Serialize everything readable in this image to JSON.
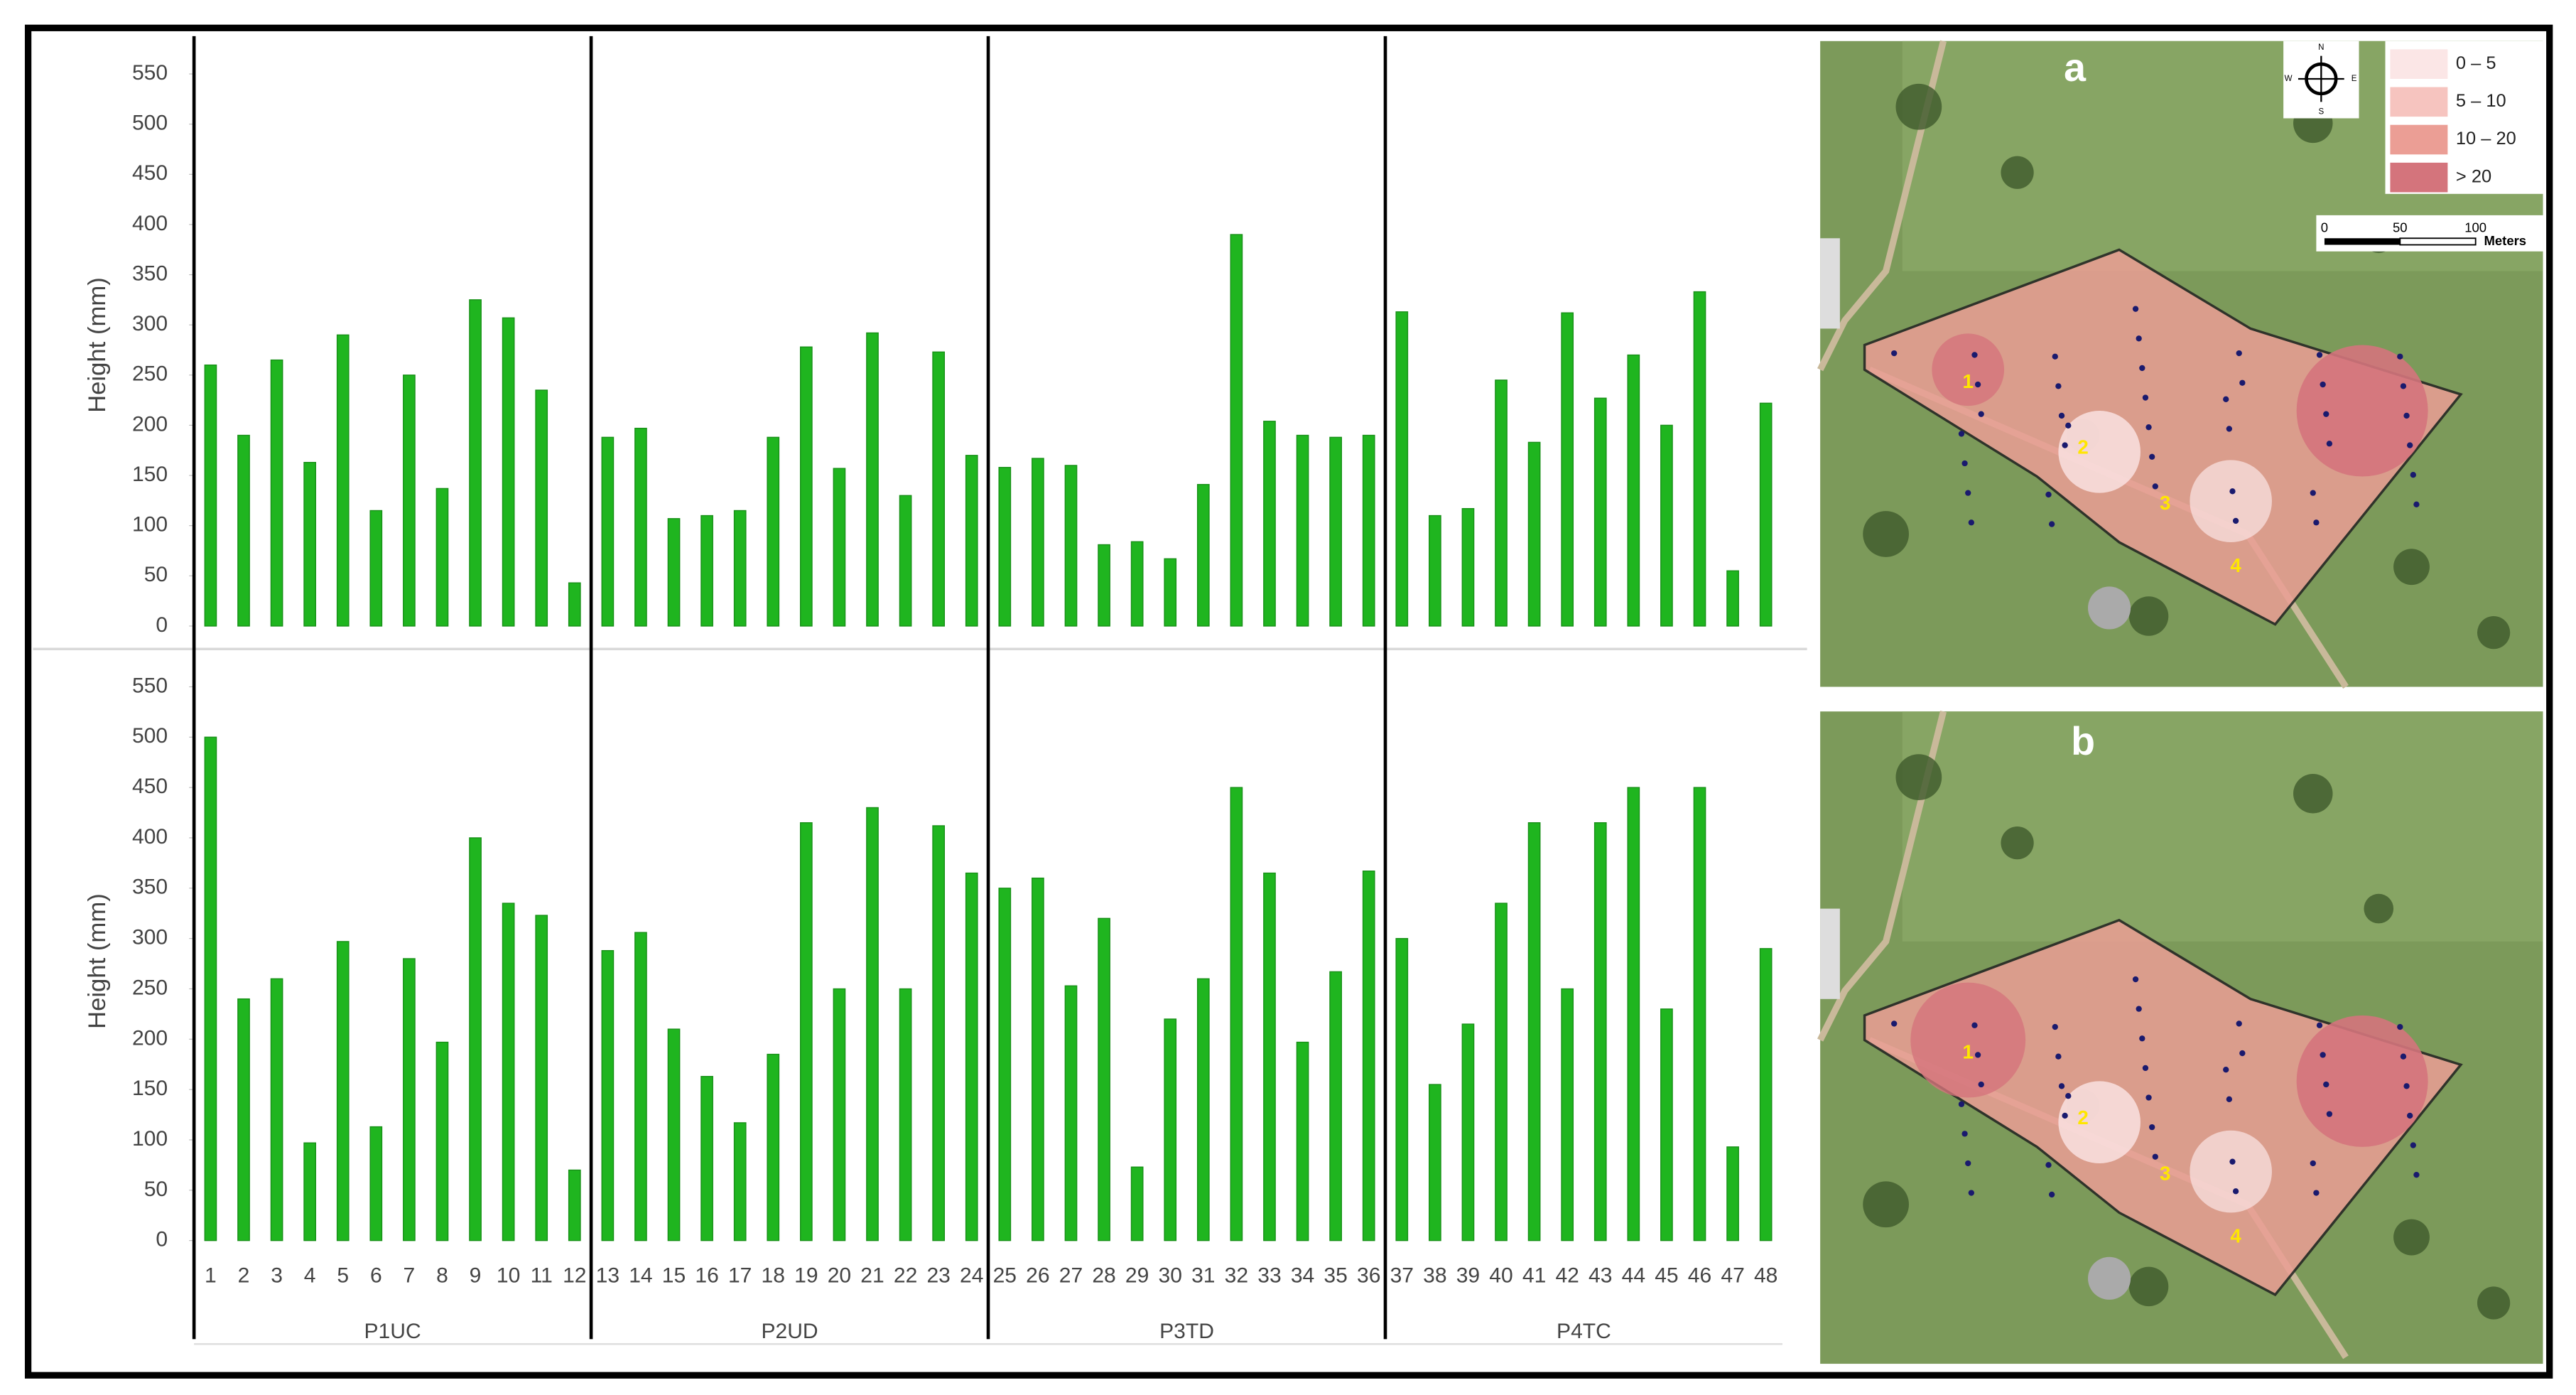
{
  "chart_data": [
    {
      "type": "bar",
      "ylabel": "Height (mm)",
      "color": "#1fb51f",
      "values": [
        260,
        190,
        265,
        163,
        290,
        115,
        250,
        137,
        325,
        307,
        235,
        43,
        188,
        197,
        107,
        110,
        115,
        188,
        278,
        157,
        292,
        130,
        273,
        170,
        158,
        167,
        160,
        81,
        84,
        67,
        141,
        390,
        204,
        190,
        188,
        190,
        313,
        110,
        117,
        245,
        183,
        312,
        227,
        270,
        200,
        333,
        55,
        222
      ],
      "ylim": [
        0,
        550
      ],
      "yticks": [
        0,
        50,
        100,
        150,
        200,
        250,
        300,
        350,
        400,
        450,
        500,
        550
      ]
    },
    {
      "type": "bar",
      "ylabel": "Height (mm)",
      "color": "#1fb51f",
      "categories": [
        "1",
        "2",
        "3",
        "4",
        "5",
        "6",
        "7",
        "8",
        "9",
        "10",
        "11",
        "12",
        "13",
        "14",
        "15",
        "16",
        "17",
        "18",
        "19",
        "20",
        "21",
        "22",
        "23",
        "24",
        "25",
        "26",
        "27",
        "28",
        "29",
        "30",
        "31",
        "32",
        "33",
        "34",
        "35",
        "36",
        "37",
        "38",
        "39",
        "40",
        "41",
        "42",
        "43",
        "44",
        "45",
        "46",
        "47",
        "48"
      ],
      "groups": [
        "P1UC",
        "P2UD",
        "P3TD",
        "P4TC"
      ],
      "values": [
        500,
        240,
        260,
        97,
        297,
        113,
        280,
        197,
        400,
        335,
        323,
        70,
        288,
        306,
        210,
        163,
        117,
        185,
        415,
        250,
        430,
        250,
        412,
        365,
        350,
        360,
        253,
        320,
        73,
        220,
        260,
        450,
        365,
        197,
        267,
        367,
        300,
        155,
        215,
        335,
        415,
        250,
        415,
        450,
        230,
        450,
        93,
        290
      ],
      "ylim": [
        0,
        550
      ],
      "yticks": [
        0,
        50,
        100,
        150,
        200,
        250,
        300,
        350,
        400,
        450,
        500,
        550
      ]
    }
  ],
  "maps": [
    {
      "label": "a",
      "zones": [
        "1",
        "2",
        "3",
        "4"
      ]
    },
    {
      "label": "b",
      "zones": [
        "1",
        "2",
        "3",
        "4"
      ]
    }
  ],
  "legend": [
    {
      "label": "0 – 5",
      "color": "#fbe6e6"
    },
    {
      "label": "5 – 10",
      "color": "#f6c4bf"
    },
    {
      "label": "10 – 20",
      "color": "#eb9e95"
    },
    {
      "label": "> 20",
      "color": "#d4747c"
    }
  ],
  "scale": {
    "ticks": [
      "0",
      "50",
      "100"
    ],
    "unit": "Meters"
  },
  "compass": [
    "N",
    "W",
    "E",
    "S"
  ]
}
